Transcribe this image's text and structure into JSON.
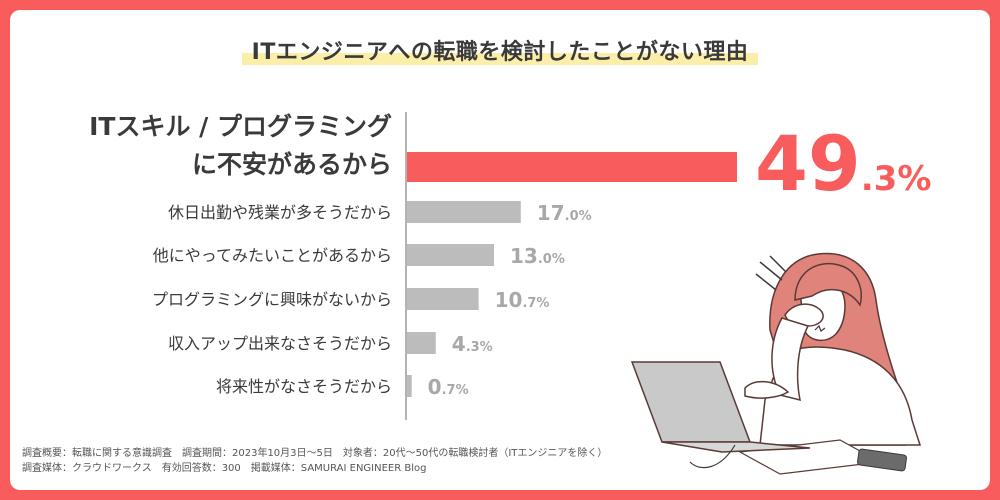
{
  "title": "ITエンジニアへの転職を検討したことがない理由",
  "colors": {
    "background": "#f85c5c",
    "highlight_bar": "#f85c5c",
    "other_bars": "#bcbcbc",
    "title_marker": "#fbeea9",
    "text": "#3a3a3a",
    "value_gray": "#a8a8a8"
  },
  "chart_data": {
    "type": "bar",
    "orientation": "horizontal",
    "categories": [
      "ITスキル / プログラミングに不安があるから",
      "休日出勤や残業が多そうだから",
      "他にやってみたいことがあるから",
      "プログラミングに興味がないから",
      "収入アップ出来なさそうだから",
      "将来性がなさそうだから"
    ],
    "category_lines": [
      [
        "ITスキル / プログラミング",
        "に不安があるから"
      ],
      [
        "休日出勤や残業が多そうだから"
      ],
      [
        "他にやってみたいことがあるから"
      ],
      [
        "プログラミングに興味がないから"
      ],
      [
        "収入アップ出来なさそうだから"
      ],
      [
        "将来性がなさそうだから"
      ]
    ],
    "values": [
      49.3,
      17.0,
      13.0,
      10.7,
      4.3,
      0.7
    ],
    "value_labels": [
      {
        "int": "49",
        "dec": ".3%"
      },
      {
        "int": "17",
        "dec": ".0%"
      },
      {
        "int": "13",
        "dec": ".0%"
      },
      {
        "int": "10",
        "dec": ".7%"
      },
      {
        "int": "4",
        "dec": ".3%"
      },
      {
        "int": "0",
        "dec": ".7%"
      }
    ],
    "highlight_index": 0,
    "grid": false,
    "legend": "none"
  },
  "footer": {
    "line1": "調査概要：転職に関する意識調査　調査期間：2023年10月3日〜5日　対象者：20代〜50代の転職検討者（ITエンジニアを除く）",
    "line2": "調査媒体：クラウドワークス　有効回答数：300　掲載媒体：SAMURAI ENGINEER Blog"
  },
  "illustration": {
    "name": "worried-woman-at-laptop"
  }
}
